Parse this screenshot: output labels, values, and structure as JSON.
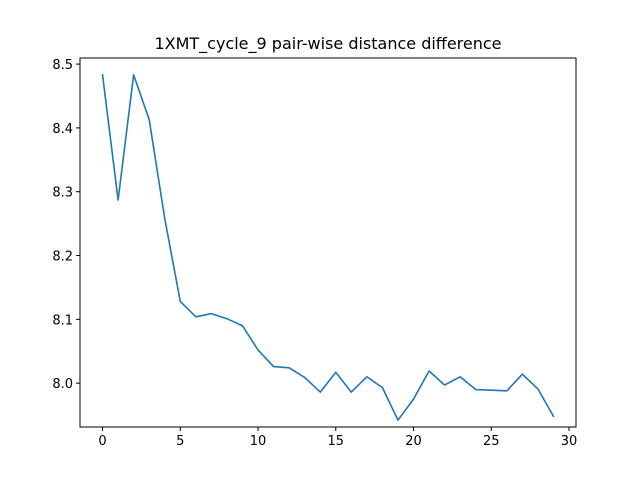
{
  "chart_data": {
    "type": "line",
    "title": "1XMT_cycle_9 pair-wise distance difference",
    "xlabel": "",
    "ylabel": "",
    "xlim": [
      -1.45,
      30.45
    ],
    "ylim": [
      7.9313,
      8.5095
    ],
    "grid": false,
    "xticks": [
      0,
      5,
      10,
      15,
      20,
      25,
      30
    ],
    "xtick_labels": [
      "0",
      "5",
      "10",
      "15",
      "20",
      "25",
      "30"
    ],
    "yticks": [
      8.0,
      8.1,
      8.2,
      8.3,
      8.4,
      8.5
    ],
    "ytick_labels": [
      "8.0",
      "8.1",
      "8.2",
      "8.3",
      "8.4",
      "8.5"
    ],
    "series": [
      {
        "color": "#1f77b4",
        "x": [
          0,
          1,
          2,
          3,
          4,
          5,
          6,
          7,
          8,
          9,
          10,
          11,
          12,
          13,
          14,
          15,
          16,
          17,
          18,
          19,
          20,
          21,
          22,
          23,
          24,
          25,
          26,
          27,
          28,
          29
        ],
        "values": [
          8.483,
          8.287,
          8.483,
          8.413,
          8.258,
          8.128,
          8.104,
          8.109,
          8.101,
          8.09,
          8.052,
          8.026,
          8.024,
          8.009,
          7.986,
          8.017,
          7.986,
          8.01,
          7.993,
          7.942,
          7.975,
          8.019,
          7.997,
          8.01,
          7.99,
          7.989,
          7.988,
          8.014,
          7.991,
          7.948
        ]
      }
    ]
  }
}
